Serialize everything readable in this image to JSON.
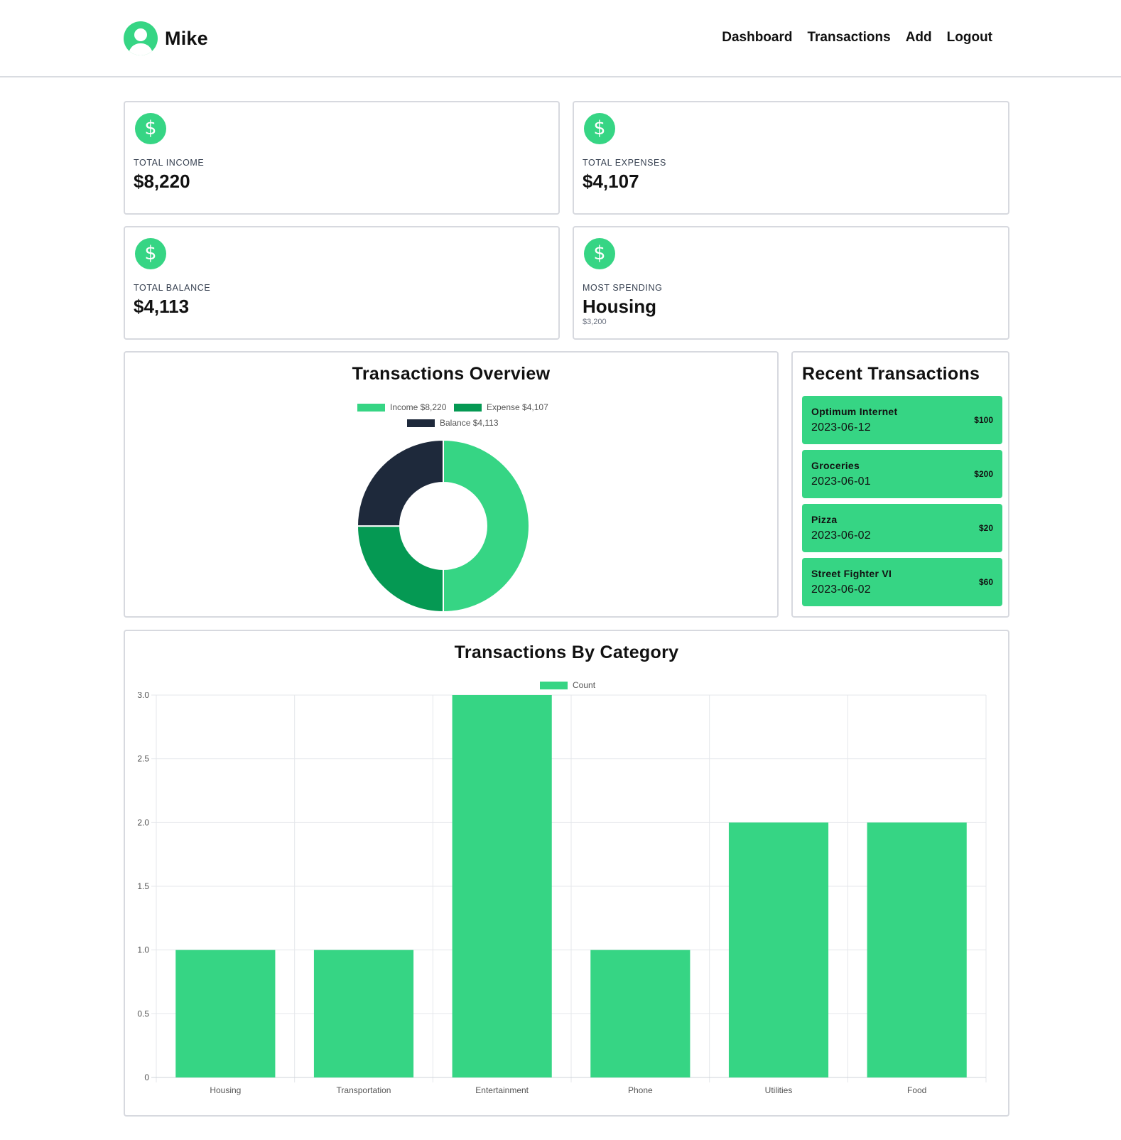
{
  "header": {
    "user_name": "Mike",
    "nav": [
      "Dashboard",
      "Transactions",
      "Add",
      "Logout"
    ]
  },
  "stats": [
    {
      "label": "TOTAL INCOME",
      "value": "$8,220",
      "icon": "dollar-icon"
    },
    {
      "label": "TOTAL EXPENSES",
      "value": "$4,107",
      "icon": "dollar-icon"
    },
    {
      "label": "TOTAL BALANCE",
      "value": "$4,113",
      "icon": "dollar-icon"
    },
    {
      "label": "MOST SPENDING",
      "value": "Housing",
      "sub": "$3,200",
      "icon": "dollar-icon"
    }
  ],
  "overview": {
    "title": "Transactions Overview",
    "legend": [
      "Income $8,220",
      "Expense $4,107",
      "Balance $4,113"
    ]
  },
  "recent": {
    "title": "Recent Transactions",
    "items": [
      {
        "name": "Optimum Internet",
        "date": "2023-06-12",
        "amount": "$100"
      },
      {
        "name": "Groceries",
        "date": "2023-06-01",
        "amount": "$200"
      },
      {
        "name": "Pizza",
        "date": "2023-06-02",
        "amount": "$20"
      },
      {
        "name": "Street Fighter VI",
        "date": "2023-06-02",
        "amount": "$60"
      }
    ]
  },
  "category": {
    "title": "Transactions By Category",
    "legend": "Count"
  },
  "colors": {
    "accent": "#36d584",
    "income": "#36d584",
    "expense": "#059953",
    "balance": "#1e293b"
  },
  "chart_data": [
    {
      "type": "pie",
      "variant": "doughnut",
      "labels": [
        "Income",
        "Expense",
        "Balance"
      ],
      "values": [
        8220,
        4107,
        4113
      ],
      "colors": [
        "#36d584",
        "#059953",
        "#1e293b"
      ],
      "legend": "top"
    },
    {
      "type": "bar",
      "categories": [
        "Housing",
        "Transportation",
        "Entertainment",
        "Phone",
        "Utilities",
        "Food"
      ],
      "series": [
        {
          "name": "Count",
          "values": [
            1,
            1,
            3,
            1,
            2,
            2
          ]
        }
      ],
      "ylim": [
        0,
        3
      ],
      "yticks": [
        "0",
        "0.5",
        "1.0",
        "1.5",
        "2.0",
        "2.5",
        "3.0"
      ],
      "grid": true,
      "legend": "top"
    }
  ]
}
